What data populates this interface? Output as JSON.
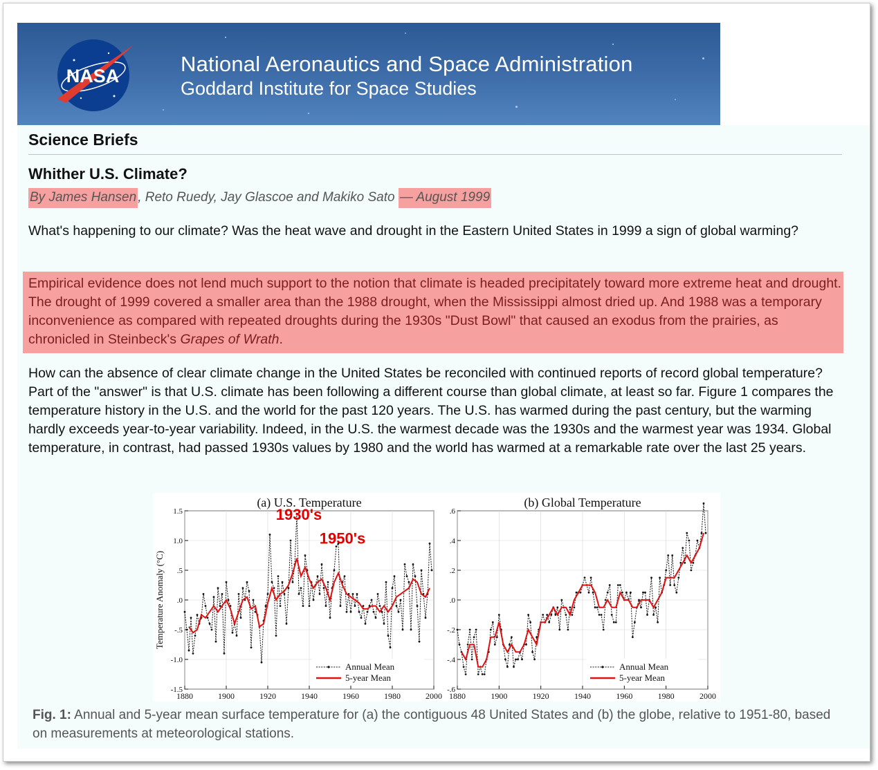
{
  "banner": {
    "agency": "National Aeronautics and Space Administration",
    "institute": "Goddard Institute for Space Studies",
    "logo_text": "NASA"
  },
  "section_title": "Science Briefs",
  "article": {
    "title": "Whither U.S. Climate?",
    "byline": {
      "author_first": "By James Hansen",
      "coauthors": ", Reto Ruedy, Jay Glascoe and Makiko Sato ",
      "dash": "—",
      "date": " August 1999"
    },
    "intro": "What's happening to our climate? Was the heat wave and drought in the Eastern United States in 1999 a sign of global warming?",
    "quote": "Empirical evidence does not lend much support to the notion that climate is headed precipitately toward more extreme heat and drought. The drought of 1999 covered a smaller area than the 1988 drought, when the Mississippi almost dried up. And 1988 was a temporary inconvenience as compared with repeated droughts during the 1930s \"Dust Bowl\" that caused an exodus from the prairies, as chronicled in Steinbeck's ",
    "quote_book": "Grapes of Wrath",
    "quote_end": ".",
    "body": "How can the absence of clear climate change in the United States be reconciled with continued reports of record global temperature? Part of the \"answer\" is that U.S. climate has been following a different course than global climate, at least so far. Figure 1 compares the temperature history in the U.S. and the world for the past 120 years. The U.S. has warmed during the past century, but the warming hardly exceeds year-to-year variability. Indeed, in the U.S. the warmest decade was the 1930s and the warmest year was 1934. Global temperature, in contrast, had passed 1930s values by 1980 and the world has warmed at a remarkable rate over the last 25 years."
  },
  "caption": {
    "label": "Fig. 1:",
    "text": " Annual and 5-year mean surface temperature for (a) the contiguous 48 United States and (b) the globe, relative to 1951-80, based on measurements at meteorological stations."
  },
  "chart_data": [
    {
      "type": "line",
      "title": "(a) U.S. Temperature",
      "ylabel": "Temperature Anomaly (°C)",
      "xlabel": "",
      "xlim": [
        1880,
        2000
      ],
      "ylim": [
        -1.5,
        1.5
      ],
      "x_ticks": [
        1880,
        1900,
        1920,
        1940,
        1960,
        1980,
        2000
      ],
      "y_ticks": [
        -1.5,
        -1.0,
        -0.5,
        0.0,
        0.5,
        1.0,
        1.5
      ],
      "y_tick_labels": [
        "-1.5",
        "-1.0",
        "-.5",
        ".0",
        ".5",
        "1.0",
        "1.5"
      ],
      "legend": [
        "Annual Mean",
        "5-year Mean"
      ],
      "legend_position": "bottom-right",
      "annotations": [
        {
          "text": "1930's",
          "x": 1935,
          "y": 1.35,
          "color": "#e00000"
        },
        {
          "text": "1950's",
          "x": 1956,
          "y": 0.95,
          "color": "#e00000"
        }
      ],
      "series": [
        {
          "name": "Annual Mean",
          "style": "dotted-black-markers",
          "x": [
            1880,
            1881,
            1882,
            1883,
            1884,
            1885,
            1886,
            1887,
            1888,
            1889,
            1890,
            1891,
            1892,
            1893,
            1894,
            1895,
            1896,
            1897,
            1898,
            1899,
            1900,
            1901,
            1902,
            1903,
            1904,
            1905,
            1906,
            1907,
            1908,
            1909,
            1910,
            1911,
            1912,
            1913,
            1914,
            1915,
            1916,
            1917,
            1918,
            1919,
            1920,
            1921,
            1922,
            1923,
            1924,
            1925,
            1926,
            1927,
            1928,
            1929,
            1930,
            1931,
            1932,
            1933,
            1934,
            1935,
            1936,
            1937,
            1938,
            1939,
            1940,
            1941,
            1942,
            1943,
            1944,
            1945,
            1946,
            1947,
            1948,
            1949,
            1950,
            1951,
            1952,
            1953,
            1954,
            1955,
            1956,
            1957,
            1958,
            1959,
            1960,
            1961,
            1962,
            1963,
            1964,
            1965,
            1966,
            1967,
            1968,
            1969,
            1970,
            1971,
            1972,
            1973,
            1974,
            1975,
            1976,
            1977,
            1978,
            1979,
            1980,
            1981,
            1982,
            1983,
            1984,
            1985,
            1986,
            1987,
            1988,
            1989,
            1990,
            1991,
            1992,
            1993,
            1994,
            1995,
            1996,
            1997,
            1998,
            1999
          ],
          "values": [
            -0.2,
            -0.5,
            -0.85,
            -0.3,
            -0.9,
            -0.6,
            -0.25,
            -0.4,
            -0.3,
            0.1,
            -0.1,
            -0.3,
            -0.4,
            -0.5,
            0.05,
            -0.7,
            0.2,
            -0.1,
            0.1,
            -0.9,
            0.3,
            0.0,
            -0.1,
            -0.55,
            -0.4,
            -0.6,
            0.1,
            -0.3,
            0.2,
            0.0,
            0.3,
            0.15,
            -0.8,
            0.0,
            -0.2,
            -0.25,
            -0.45,
            -1.05,
            -0.35,
            -0.1,
            0.1,
            1.1,
            0.3,
            0.2,
            -0.6,
            0.4,
            -0.1,
            0.3,
            0.1,
            -0.4,
            0.2,
            1.0,
            0.3,
            0.6,
            1.45,
            0.1,
            0.2,
            -0.1,
            0.75,
            0.5,
            -0.1,
            0.3,
            0.0,
            0.25,
            0.4,
            0.1,
            0.6,
            0.2,
            -0.1,
            0.3,
            -0.3,
            0.2,
            0.5,
            0.9,
            0.95,
            -0.1,
            0.3,
            0.4,
            -0.2,
            0.1,
            -0.2,
            0.1,
            -0.1,
            0.1,
            -0.2,
            -0.3,
            -0.1,
            -0.4,
            -0.2,
            -0.1,
            0.0,
            -0.2,
            -0.3,
            0.1,
            -0.1,
            -0.2,
            -0.4,
            0.3,
            -0.6,
            -0.8,
            0.2,
            0.4,
            -0.1,
            -0.2,
            0.0,
            -0.5,
            0.6,
            0.4,
            0.3,
            -0.5,
            0.6,
            0.4,
            -0.1,
            -0.7,
            0.5,
            0.1,
            -0.3,
            0.1,
            0.95,
            0.5
          ]
        },
        {
          "name": "5-year Mean",
          "style": "solid-red",
          "x": [
            1882,
            1884,
            1886,
            1888,
            1890,
            1892,
            1894,
            1896,
            1898,
            1900,
            1902,
            1904,
            1906,
            1908,
            1910,
            1912,
            1914,
            1916,
            1918,
            1920,
            1922,
            1924,
            1926,
            1928,
            1930,
            1932,
            1934,
            1936,
            1938,
            1940,
            1942,
            1944,
            1946,
            1948,
            1950,
            1952,
            1954,
            1956,
            1958,
            1960,
            1962,
            1964,
            1966,
            1968,
            1970,
            1972,
            1974,
            1976,
            1978,
            1980,
            1982,
            1984,
            1986,
            1988,
            1990,
            1992,
            1994,
            1996,
            1998
          ],
          "values": [
            -0.45,
            -0.55,
            -0.5,
            -0.25,
            -0.3,
            -0.2,
            -0.1,
            -0.2,
            -0.1,
            0.0,
            -0.15,
            -0.4,
            -0.2,
            0.0,
            0.05,
            -0.15,
            -0.1,
            -0.45,
            -0.4,
            -0.05,
            0.2,
            0.0,
            0.1,
            0.15,
            0.25,
            0.45,
            0.7,
            0.4,
            0.55,
            0.35,
            0.2,
            0.3,
            0.35,
            0.2,
            0.0,
            0.3,
            0.45,
            0.25,
            0.1,
            0.05,
            0.0,
            -0.05,
            -0.15,
            -0.15,
            -0.1,
            -0.1,
            -0.2,
            -0.1,
            -0.2,
            -0.1,
            0.05,
            0.1,
            0.15,
            0.2,
            0.35,
            0.3,
            0.1,
            0.05,
            0.2
          ]
        }
      ]
    },
    {
      "type": "line",
      "title": "(b) Global Temperature",
      "xlabel": "",
      "ylabel": "",
      "xlim": [
        1880,
        2000
      ],
      "ylim": [
        -0.6,
        0.6
      ],
      "x_ticks": [
        1880,
        1900,
        1920,
        1940,
        1960,
        1980,
        2000
      ],
      "y_ticks": [
        -0.6,
        -0.4,
        -0.2,
        0.0,
        0.2,
        0.4,
        0.6
      ],
      "y_tick_labels": [
        "-.6",
        "-.4",
        "-.2",
        ".0",
        ".2",
        ".4",
        ".6"
      ],
      "legend": [
        "Annual Mean",
        "5-year Mean"
      ],
      "legend_position": "bottom-right",
      "series": [
        {
          "name": "Annual Mean",
          "style": "dotted-black-markers",
          "x": [
            1880,
            1881,
            1882,
            1883,
            1884,
            1885,
            1886,
            1887,
            1888,
            1889,
            1890,
            1891,
            1892,
            1893,
            1894,
            1895,
            1896,
            1897,
            1898,
            1899,
            1900,
            1901,
            1902,
            1903,
            1904,
            1905,
            1906,
            1907,
            1908,
            1909,
            1910,
            1911,
            1912,
            1913,
            1914,
            1915,
            1916,
            1917,
            1918,
            1919,
            1920,
            1921,
            1922,
            1923,
            1924,
            1925,
            1926,
            1927,
            1928,
            1929,
            1930,
            1931,
            1932,
            1933,
            1934,
            1935,
            1936,
            1937,
            1938,
            1939,
            1940,
            1941,
            1942,
            1943,
            1944,
            1945,
            1946,
            1947,
            1948,
            1949,
            1950,
            1951,
            1952,
            1953,
            1954,
            1955,
            1956,
            1957,
            1958,
            1959,
            1960,
            1961,
            1962,
            1963,
            1964,
            1965,
            1966,
            1967,
            1968,
            1969,
            1970,
            1971,
            1972,
            1973,
            1974,
            1975,
            1976,
            1977,
            1978,
            1979,
            1980,
            1981,
            1982,
            1983,
            1984,
            1985,
            1986,
            1987,
            1988,
            1989,
            1990,
            1991,
            1992,
            1993,
            1994,
            1995,
            1996,
            1997,
            1998,
            1999
          ],
          "values": [
            -0.2,
            -0.3,
            -0.35,
            -0.45,
            -0.5,
            -0.3,
            -0.2,
            -0.4,
            -0.25,
            -0.2,
            -0.5,
            -0.45,
            -0.5,
            -0.5,
            -0.4,
            -0.35,
            -0.2,
            -0.15,
            -0.3,
            -0.25,
            -0.1,
            -0.2,
            -0.3,
            -0.4,
            -0.45,
            -0.3,
            -0.25,
            -0.45,
            -0.4,
            -0.4,
            -0.35,
            -0.4,
            -0.3,
            -0.3,
            -0.1,
            -0.15,
            -0.35,
            -0.4,
            -0.25,
            -0.2,
            -0.15,
            -0.1,
            -0.15,
            -0.1,
            -0.15,
            -0.1,
            -0.05,
            -0.1,
            -0.05,
            -0.2,
            0.0,
            -0.05,
            -0.1,
            -0.2,
            -0.05,
            -0.1,
            -0.05,
            0.05,
            0.05,
            0.05,
            0.1,
            0.15,
            0.1,
            0.05,
            0.15,
            0.05,
            -0.05,
            -0.05,
            -0.1,
            -0.1,
            -0.2,
            0.0,
            0.05,
            0.1,
            -0.1,
            -0.15,
            -0.15,
            0.1,
            0.1,
            0.05,
            0.0,
            0.05,
            0.0,
            0.05,
            -0.25,
            -0.15,
            -0.05,
            0.0,
            -0.05,
            0.05,
            0.05,
            -0.1,
            0.0,
            0.15,
            -0.1,
            -0.05,
            -0.15,
            0.15,
            0.05,
            0.1,
            0.2,
            0.3,
            0.1,
            0.3,
            0.1,
            0.05,
            0.15,
            0.25,
            0.35,
            0.25,
            0.45,
            0.4,
            0.2,
            0.25,
            0.3,
            0.4,
            0.35,
            0.45,
            0.65,
            0.45
          ]
        },
        {
          "name": "5-year Mean",
          "style": "solid-red",
          "x": [
            1882,
            1884,
            1886,
            1888,
            1890,
            1892,
            1894,
            1896,
            1898,
            1900,
            1902,
            1904,
            1906,
            1908,
            1910,
            1912,
            1914,
            1916,
            1918,
            1920,
            1922,
            1924,
            1926,
            1928,
            1930,
            1932,
            1934,
            1936,
            1938,
            1940,
            1942,
            1944,
            1946,
            1948,
            1950,
            1952,
            1954,
            1956,
            1958,
            1960,
            1962,
            1964,
            1966,
            1968,
            1970,
            1972,
            1974,
            1976,
            1978,
            1980,
            1982,
            1984,
            1986,
            1988,
            1990,
            1992,
            1994,
            1996,
            1998
          ],
          "values": [
            -0.35,
            -0.4,
            -0.3,
            -0.3,
            -0.45,
            -0.45,
            -0.4,
            -0.25,
            -0.25,
            -0.15,
            -0.3,
            -0.35,
            -0.3,
            -0.35,
            -0.35,
            -0.3,
            -0.2,
            -0.25,
            -0.3,
            -0.15,
            -0.15,
            -0.1,
            -0.05,
            -0.1,
            -0.05,
            -0.05,
            -0.1,
            0.0,
            0.05,
            0.1,
            0.1,
            0.1,
            0.05,
            -0.05,
            -0.05,
            0.0,
            -0.05,
            -0.05,
            0.05,
            0.0,
            0.0,
            -0.05,
            -0.05,
            0.0,
            0.0,
            0.0,
            -0.05,
            0.0,
            0.05,
            0.15,
            0.15,
            0.15,
            0.2,
            0.25,
            0.3,
            0.25,
            0.3,
            0.35,
            0.45
          ]
        }
      ]
    }
  ]
}
